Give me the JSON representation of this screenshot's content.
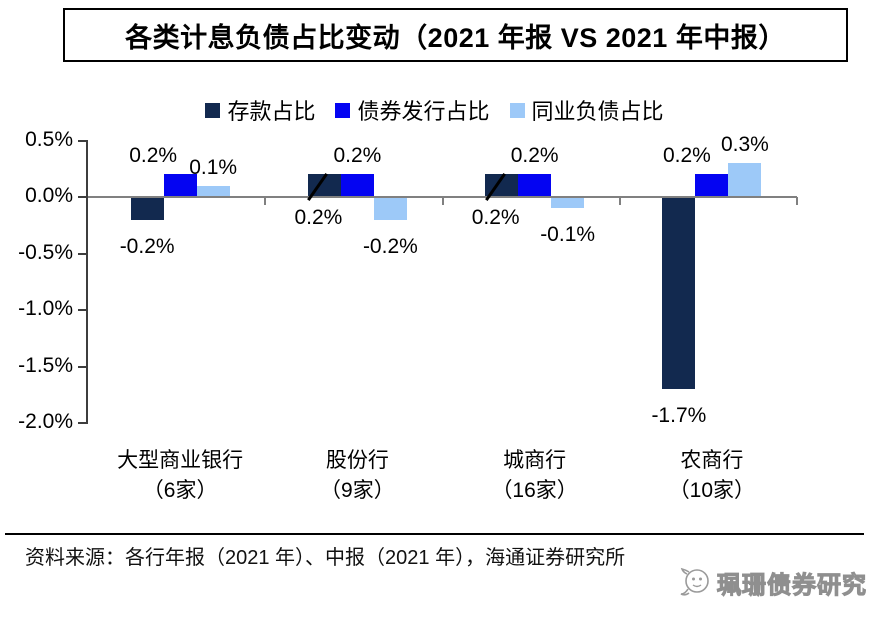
{
  "title": "各类计息负债占比变动（2021 年报 VS 2021 年中报）",
  "legend": {
    "items": [
      {
        "label": "存款占比",
        "color": "#12294F"
      },
      {
        "label": "债券发行占比",
        "color": "#0404F2"
      },
      {
        "label": "同业负债占比",
        "color": "#9DC9F8"
      }
    ]
  },
  "chart_data": {
    "type": "bar",
    "title": "各类计息负债占比变动（2021 年报 VS 2021 年中报）",
    "categories": [
      "大型商业银行",
      "股份行",
      "城商行",
      "农商行"
    ],
    "category_sublabels": [
      "（6家）",
      "（9家）",
      "（16家）",
      "（10家）"
    ],
    "series": [
      {
        "name": "存款占比",
        "color": "#12294F",
        "values": [
          -0.2,
          0.2,
          0.2,
          -1.7
        ],
        "data_labels": [
          "-0.2%",
          "0.2%",
          "0.2%",
          "-1.7%"
        ],
        "label_pos": [
          "below",
          "axis",
          "axis",
          "below"
        ],
        "label_dx": [
          0,
          -6,
          -6,
          0
        ],
        "slash_callout_groups": [
          1,
          2
        ]
      },
      {
        "name": "债券发行占比",
        "color": "#0404F2",
        "values": [
          0.2,
          0.2,
          0.2,
          0.2
        ],
        "data_labels": [
          "0.2%",
          "0.2%",
          "0.2%",
          "0.2%"
        ],
        "label_pos": [
          "above",
          "above",
          "above",
          "above"
        ],
        "label_dx": [
          -27,
          0,
          0,
          -25
        ]
      },
      {
        "name": "同业负债占比",
        "color": "#9DC9F8",
        "values": [
          0.1,
          -0.2,
          -0.1,
          0.3
        ],
        "data_labels": [
          "0.1%",
          "-0.2%",
          "-0.1%",
          "0.3%"
        ],
        "label_pos": [
          "above",
          "below",
          "below",
          "above"
        ],
        "label_dx": [
          0,
          0,
          0,
          0
        ]
      }
    ],
    "xlabel": "",
    "ylabel": "",
    "ylim": [
      -2.0,
      0.5
    ],
    "yticks": [
      {
        "label": "0.5%",
        "value": 0.5
      },
      {
        "label": "0.0%",
        "value": 0.0
      },
      {
        "label": "-0.5%",
        "value": -0.5
      },
      {
        "label": "-1.0%",
        "value": -1.0
      },
      {
        "label": "-1.5%",
        "value": -1.5
      },
      {
        "label": "-2.0%",
        "value": -2.0
      }
    ],
    "grid": false,
    "legend_position": "top",
    "axis_colors": {
      "zero_line": "#808080",
      "axis": "#3d3d3d"
    }
  },
  "source_note": "资料来源：各行年报（2021 年）、中报（2021 年），海通证券研究所",
  "watermark": {
    "icon": "chat-bubble-bird-logo",
    "text": "珮珊债券研究"
  }
}
